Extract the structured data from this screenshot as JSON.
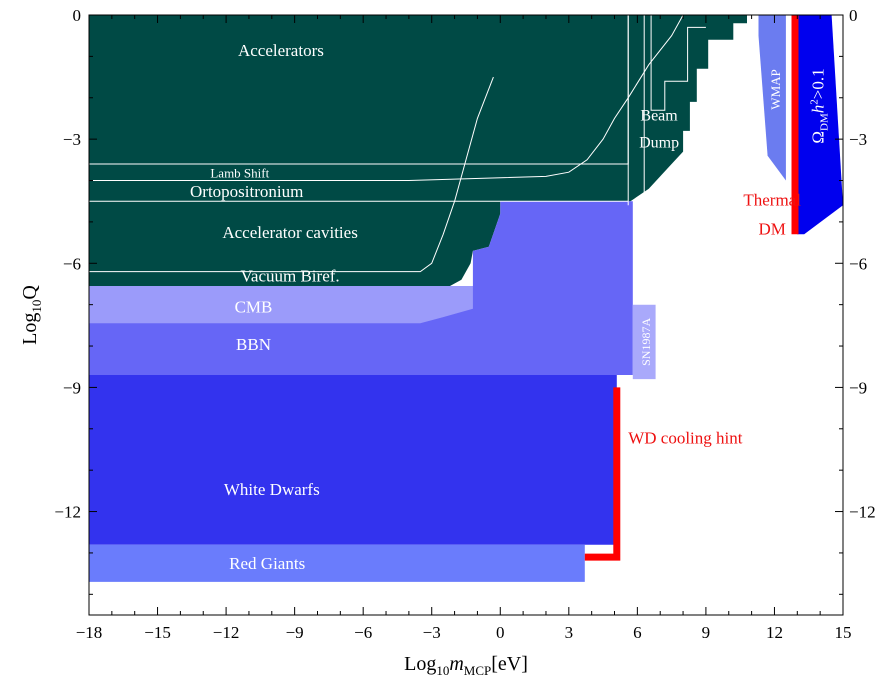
{
  "chart_data": {
    "type": "area",
    "xlabel_main": "Log",
    "xlabel_sub": "10",
    "xlabel_var": "m",
    "xlabel_var_sub": "MCP",
    "xlabel_unit": "[eV]",
    "ylabel_main": "Log",
    "ylabel_sub": "10",
    "ylabel_var": "Q",
    "xlim": [
      -18,
      15
    ],
    "ylim": [
      -14.5,
      0
    ],
    "xticks": [
      -18,
      -15,
      -12,
      -9,
      -6,
      -3,
      0,
      3,
      6,
      9,
      12,
      15
    ],
    "yticks": [
      0,
      -3,
      -6,
      -9,
      -12
    ],
    "xtick_labels": [
      "−18",
      "−15",
      "−12",
      "−9",
      "−6",
      "−3",
      "0",
      "3",
      "6",
      "9",
      "12",
      "15"
    ],
    "ytick_labels": [
      "0",
      "−3",
      "−6",
      "−9",
      "−12"
    ],
    "colors": {
      "accelerators": "#004a45",
      "white_dwarfs": "#3333ee",
      "red_giants": "#6a7cfc",
      "bbn": "#6666f6",
      "cmb": "#9b9bfa",
      "sn1987a": "#a9a9fb",
      "wmap": "#6b7cf0",
      "omega_dm": "#0000ee",
      "hint": "#ff0000",
      "curve": "#ffffff"
    },
    "regions": [
      {
        "key": "accelerators",
        "name": "Accelerators",
        "polygon": [
          [
            -18,
            0
          ],
          [
            10.8,
            0
          ],
          [
            10.8,
            -0.2
          ],
          [
            10.2,
            -0.2
          ],
          [
            10.2,
            -0.6
          ],
          [
            9.1,
            -0.6
          ],
          [
            9.1,
            -1.3
          ],
          [
            8.6,
            -1.3
          ],
          [
            8.6,
            -2.1
          ],
          [
            8.3,
            -2.1
          ],
          [
            8.3,
            -2.8
          ],
          [
            8,
            -2.8
          ],
          [
            8,
            -3.3
          ],
          [
            7.5,
            -3.6
          ],
          [
            7,
            -3.9
          ],
          [
            6.5,
            -4.2
          ],
          [
            5.7,
            -4.5
          ],
          [
            0,
            -4.5
          ],
          [
            0,
            -4.8
          ],
          [
            -0.5,
            -5.6
          ],
          [
            -1.2,
            -5.7
          ],
          [
            -1.3,
            -6.0
          ],
          [
            -1.7,
            -6.4
          ],
          [
            -2.2,
            -6.55
          ],
          [
            -18,
            -6.55
          ]
        ]
      },
      {
        "key": "bbn",
        "name": "BBN",
        "polygon": [
          [
            -18,
            -6.55
          ],
          [
            -1.2,
            -6.55
          ],
          [
            -1.2,
            -5.7
          ],
          [
            -0.5,
            -5.6
          ],
          [
            0,
            -4.8
          ],
          [
            0,
            -4.5
          ],
          [
            5.8,
            -4.5
          ],
          [
            5.8,
            -8.7
          ],
          [
            -18,
            -8.7
          ]
        ]
      },
      {
        "key": "cmb",
        "name": "CMB",
        "polygon": [
          [
            -18,
            -6.55
          ],
          [
            -2.2,
            -6.55
          ],
          [
            -1.2,
            -6.55
          ],
          [
            -1.2,
            -7.1
          ],
          [
            -2.5,
            -7.3
          ],
          [
            -3.5,
            -7.45
          ],
          [
            -18,
            -7.45
          ]
        ]
      },
      {
        "key": "sn1987a",
        "name": "SN1987A",
        "polygon": [
          [
            5.8,
            -7.0
          ],
          [
            6.8,
            -7.0
          ],
          [
            6.8,
            -8.8
          ],
          [
            5.8,
            -8.8
          ]
        ]
      },
      {
        "key": "white_dwarfs",
        "name": "White Dwarfs",
        "polygon": [
          [
            -18,
            -8.7
          ],
          [
            5.1,
            -8.7
          ],
          [
            5.1,
            -12.8
          ],
          [
            -18,
            -12.8
          ]
        ]
      },
      {
        "key": "red_giants",
        "name": "Red Giants",
        "polygon": [
          [
            -18,
            -12.8
          ],
          [
            3.7,
            -12.8
          ],
          [
            3.7,
            -13.7
          ],
          [
            -18,
            -13.7
          ]
        ]
      },
      {
        "key": "wmap",
        "name": "WMAP",
        "polygon": [
          [
            11.3,
            0
          ],
          [
            12.5,
            0
          ],
          [
            12.5,
            -3.4
          ],
          [
            12.5,
            -4.0
          ],
          [
            11.7,
            -3.4
          ],
          [
            11.3,
            -0.5
          ]
        ]
      },
      {
        "key": "omega_dm",
        "name": "Ω",
        "name_sub": "DM",
        "name_rest": "h",
        "name_sup": "2",
        "name_tail": ">0.1",
        "polygon": [
          [
            13,
            0
          ],
          [
            14.5,
            0
          ],
          [
            15,
            -4.6
          ],
          [
            13.3,
            -5.3
          ],
          [
            13,
            -5.3
          ]
        ]
      }
    ],
    "hints": [
      {
        "key": "thermal_dm",
        "label_line1": "Thermal",
        "label_line2": "DM",
        "line": [
          [
            12.9,
            0
          ],
          [
            12.9,
            -5.3
          ]
        ]
      },
      {
        "key": "wd_cooling",
        "label": "WD cooling hint",
        "line": [
          [
            3.7,
            -13.1
          ],
          [
            5.1,
            -13.1
          ],
          [
            5.1,
            -9.0
          ]
        ]
      }
    ],
    "bound_lines": [
      {
        "key": "lamb",
        "label": "Lamb Shift",
        "points": [
          [
            -18,
            -3.6
          ],
          [
            5.6,
            -3.6
          ],
          [
            5.6,
            0
          ]
        ]
      },
      {
        "key": "orto",
        "label": "Ortopositronium",
        "points": [
          [
            -18,
            -4.5
          ],
          [
            0,
            -4.5
          ],
          [
            5.6,
            -4.5
          ]
        ]
      },
      {
        "key": "beam",
        "label_line1": "Beam",
        "label_line2": "Dump",
        "points": [
          [
            5.6,
            -4.6
          ],
          [
            5.6,
            0
          ]
        ]
      },
      {
        "key": "beam2",
        "points": [
          [
            6.3,
            -4.3
          ],
          [
            6.3,
            0
          ],
          [
            6.6,
            0
          ],
          [
            6.6,
            -2.3
          ],
          [
            7.2,
            -2.3
          ],
          [
            7.2,
            -1.6
          ],
          [
            8.2,
            -1.6
          ],
          [
            8.2,
            -0.3
          ],
          [
            9,
            -0.3
          ]
        ]
      },
      {
        "key": "vac",
        "label": "Vacuum Biref.",
        "points": [
          [
            -18,
            -6.2
          ],
          [
            -3.5,
            -6.2
          ],
          [
            -3,
            -6.0
          ],
          [
            -2.5,
            -5.3
          ],
          [
            -2,
            -4.5
          ],
          [
            -1.5,
            -3.5
          ],
          [
            -1,
            -2.5
          ],
          [
            -0.3,
            -1.5
          ]
        ]
      },
      {
        "key": "cav",
        "label": "Accelerator cavities",
        "points": [
          [
            -18,
            -4.0
          ],
          [
            -4,
            -4.0
          ],
          [
            2,
            -3.9
          ],
          [
            3,
            -3.8
          ],
          [
            3.8,
            -3.5
          ],
          [
            4.5,
            -3.0
          ],
          [
            5,
            -2.5
          ],
          [
            5.6,
            -2.0
          ],
          [
            6.5,
            -1.2
          ],
          [
            7.5,
            -0.5
          ],
          [
            8,
            0
          ]
        ]
      }
    ],
    "region_labels": [
      {
        "key": "accelerators",
        "text": "Accelerators",
        "x": -9.6,
        "y": -0.9
      },
      {
        "key": "lamb",
        "text": "Lamb Shift",
        "x": -11.4,
        "y": -3.85
      },
      {
        "key": "orto",
        "text": "Ortopositronium",
        "x": -11.1,
        "y": -4.3
      },
      {
        "key": "cav",
        "text": "Accelerator cavities",
        "x": -9.2,
        "y": -5.3
      },
      {
        "key": "vac",
        "text": "Vacuum Biref.",
        "x": -9.2,
        "y": -6.35
      },
      {
        "key": "cmb",
        "text": "CMB",
        "x": -10.8,
        "y": -7.1
      },
      {
        "key": "bbn",
        "text": "BBN",
        "x": -10.8,
        "y": -8.0
      },
      {
        "key": "white_dwarfs",
        "text": "White Dwarfs",
        "x": -10.0,
        "y": -11.5
      },
      {
        "key": "red_giants",
        "text": "Red Giants",
        "x": -10.2,
        "y": -13.3
      }
    ]
  }
}
